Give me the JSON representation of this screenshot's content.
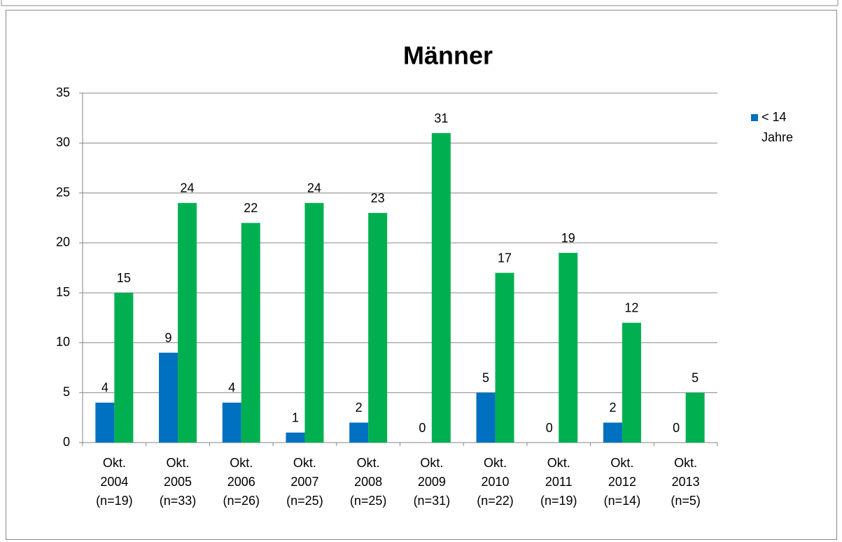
{
  "chart_data": {
    "type": "bar",
    "title": "Männer",
    "categories": [
      "Okt.\n2004\n(n=19)",
      "Okt.\n2005\n(n=33)",
      "Okt.\n2006\n(n=26)",
      "Okt.\n2007\n(n=25)",
      "Okt.\n2008\n(n=25)",
      "Okt.\n2009\n(n=31)",
      "Okt.\n2010\n(n=22)",
      "Okt.\n2011\n(n=19)",
      "Okt.\n2012\n(n=14)",
      "Okt.\n2013\n(n=5)"
    ],
    "series": [
      {
        "name": "< 14 Jahre",
        "color": "#0070c0",
        "values": [
          4,
          9,
          4,
          1,
          2,
          0,
          5,
          0,
          2,
          0
        ]
      },
      {
        "color": "#00b050",
        "values": [
          15,
          24,
          22,
          24,
          23,
          31,
          17,
          19,
          12,
          5
        ]
      }
    ],
    "ylim": [
      0,
      35
    ],
    "yticks": [
      0,
      5,
      10,
      15,
      20,
      25,
      30,
      35
    ],
    "grid": true,
    "legend": "right"
  }
}
